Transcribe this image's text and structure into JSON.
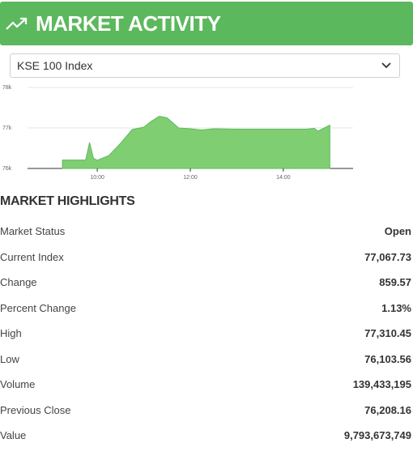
{
  "header": {
    "title": "MARKET ACTIVITY",
    "icon": "trending-up-icon",
    "color": "#5cb85c"
  },
  "index_select": {
    "selected": "KSE 100 Index"
  },
  "chart_data": {
    "type": "area",
    "color": "#7fcf72",
    "yticks": [
      "78k",
      "77k",
      "76k"
    ],
    "xticks": [
      "10:00",
      "12:00",
      "14:00"
    ],
    "ylim": [
      76000,
      78000
    ],
    "x": [
      "09:15",
      "09:30",
      "09:45",
      "09:50",
      "09:55",
      "10:00",
      "10:15",
      "10:30",
      "10:45",
      "11:00",
      "11:10",
      "11:20",
      "11:30",
      "11:45",
      "12:00",
      "12:15",
      "12:30",
      "13:00",
      "13:30",
      "14:00",
      "14:30",
      "14:40",
      "14:45",
      "14:55",
      "15:00"
    ],
    "values": [
      76208,
      76208,
      76208,
      76640,
      76250,
      76200,
      76320,
      76620,
      76960,
      77020,
      77170,
      77290,
      77250,
      77000,
      76980,
      76950,
      76980,
      76970,
      76970,
      76970,
      76970,
      76990,
      76920,
      77020,
      77068
    ]
  },
  "highlights": {
    "title": "MARKET HIGHLIGHTS",
    "rows": [
      {
        "label": "Market Status",
        "value": "Open"
      },
      {
        "label": "Current Index",
        "value": "77,067.73"
      },
      {
        "label": "Change",
        "value": "859.57"
      },
      {
        "label": "Percent Change",
        "value": "1.13%"
      },
      {
        "label": "High",
        "value": "77,310.45"
      },
      {
        "label": "Low",
        "value": "76,103.56"
      },
      {
        "label": "Volume",
        "value": "139,433,195"
      },
      {
        "label": "Previous Close",
        "value": "76,208.16"
      },
      {
        "label": "Value",
        "value": "9,793,673,749"
      }
    ]
  }
}
